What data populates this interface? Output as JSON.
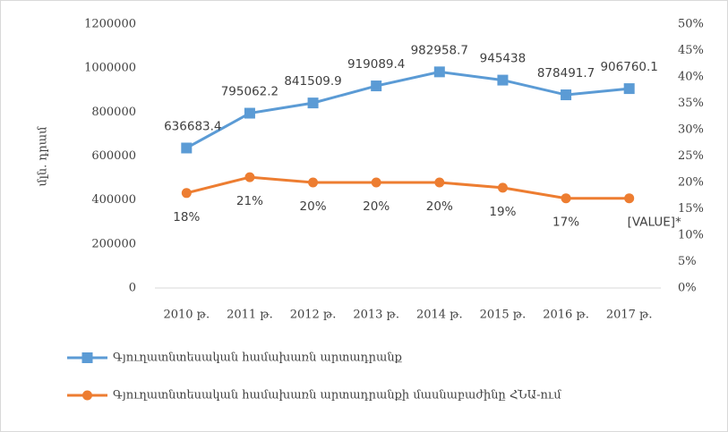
{
  "chart_data": {
    "type": "line",
    "y_label": "մլն. դրամ",
    "categories": [
      "2010 թ.",
      "2011 թ.",
      "2012 թ.",
      "2013 թ.",
      "2014 թ.",
      "2015 թ.",
      "2016 թ.",
      "2017 թ."
    ],
    "series": [
      {
        "name": "Գյուղատնտեսական համախառն արտադրանք",
        "color": "#5b9bd5",
        "marker": "square",
        "values": [
          636683.4,
          795062.2,
          841509.9,
          919089.4,
          982958.7,
          945438,
          878491.7,
          906760.1
        ]
      },
      {
        "name": "Գյուղատնտեսական համախառն արտադրանքի մասնաբաժինը ՀՆԱ-ում",
        "color": "#ed7d31",
        "marker": "circle",
        "axis": "y2",
        "values": [
          18,
          21,
          20,
          20,
          20,
          19,
          17,
          17
        ],
        "value_labels": [
          "18%",
          "21%",
          "20%",
          "20%",
          "20%",
          "19%",
          "17%",
          "[VALUE]*"
        ]
      }
    ],
    "ylim": [
      0,
      1200000
    ],
    "yticks": [
      0,
      200000,
      400000,
      600000,
      800000,
      1000000,
      1200000
    ],
    "y2lim": [
      0,
      50
    ],
    "y2ticks": [
      {
        "value": 0,
        "label": "0%"
      },
      {
        "value": 5,
        "label": "5%"
      },
      {
        "value": 10,
        "label": "10%"
      },
      {
        "value": 15,
        "label": "15%"
      },
      {
        "value": 20,
        "label": "20%"
      },
      {
        "value": 25,
        "label": "25%"
      },
      {
        "value": 30,
        "label": "30%"
      },
      {
        "value": 35,
        "label": "35%"
      },
      {
        "value": 40,
        "label": "40%"
      },
      {
        "value": 45,
        "label": "45%"
      },
      {
        "value": 50,
        "label": "50%"
      }
    ],
    "legend": "bottom"
  }
}
